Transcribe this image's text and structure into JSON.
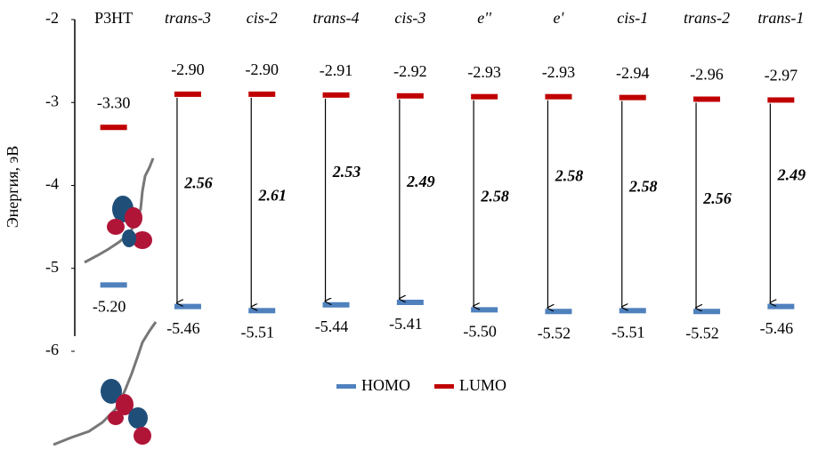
{
  "chart_data": {
    "type": "energy-levels",
    "y_label": "Энергия, эВ",
    "categories": [
      "P3HT",
      "trans-3",
      "cis-2",
      "trans-4",
      "cis-3",
      "e''",
      "e'",
      "cis-1",
      "trans-2",
      "trans-1"
    ],
    "series": [
      {
        "name": "HOMO",
        "color": "#4f81bd",
        "values": [
          -5.2,
          -5.46,
          -5.51,
          -5.44,
          -5.41,
          -5.5,
          -5.52,
          -5.51,
          -5.52,
          -5.46
        ],
        "value_labels": [
          "-5.20",
          "-5.46",
          "-5.51",
          "-5.44",
          "-5.41",
          "-5.50",
          "-5.52",
          "-5.51",
          "-5.52",
          "-5.46"
        ]
      },
      {
        "name": "LUMO",
        "color": "#c00000",
        "values": [
          -3.3,
          -2.9,
          -2.9,
          -2.91,
          -2.92,
          -2.93,
          -2.93,
          -2.94,
          -2.96,
          -2.97
        ],
        "value_labels": [
          "-3.30",
          "-2.90",
          "-2.90",
          "-2.91",
          "-2.92",
          "-2.93",
          "-2.93",
          "-2.94",
          "-2.96",
          "-2.97"
        ]
      }
    ],
    "gaps": {
      "color": "#1e5b1e",
      "values": [
        null,
        2.56,
        2.61,
        2.53,
        2.49,
        2.58,
        2.58,
        2.58,
        2.56,
        2.49
      ]
    },
    "ylim": [
      -6,
      -2
    ],
    "yticks": [
      -2,
      -3,
      -4,
      -5,
      -6
    ]
  }
}
